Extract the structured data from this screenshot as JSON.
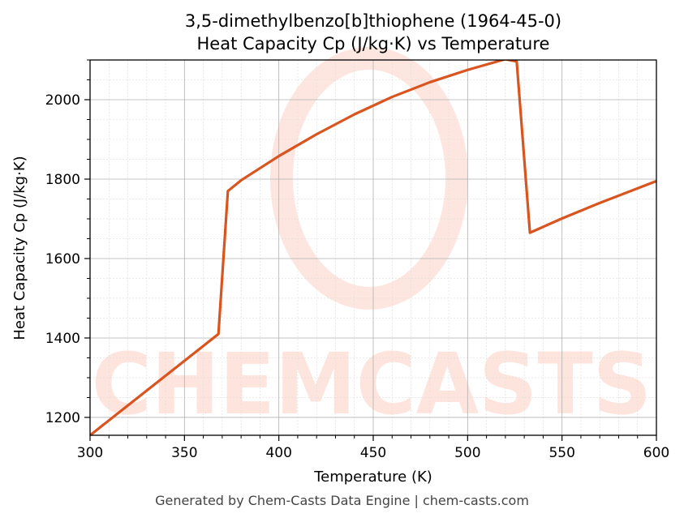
{
  "title_line1": "3,5-dimethylbenzo[b]thiophene (1964-45-0)",
  "title_line2": "Heat Capacity Cp (J/kg·K) vs Temperature",
  "footer": "Generated by Chem-Casts Data Engine | chem-casts.com",
  "watermark": "CHEMCASTS",
  "colors": {
    "line": "#d9541e",
    "watermark": "#fde3dc",
    "grid_major": "#b0b0b0",
    "grid_minor": "#dddddd"
  },
  "chart_data": {
    "type": "line",
    "title": "3,5-dimethylbenzo[b]thiophene (1964-45-0)\nHeat Capacity Cp (J/kg·K) vs Temperature",
    "xlabel": "Temperature (K)",
    "ylabel": "Heat Capacity Cp (J/kg·K)",
    "xlim": [
      300,
      600
    ],
    "ylim": [
      1155,
      2100
    ],
    "xticks": [
      300,
      350,
      400,
      450,
      500,
      550,
      600
    ],
    "yticks": [
      1200,
      1400,
      1600,
      1800,
      2000
    ],
    "grid": true,
    "minor_grid": true,
    "legend": "none",
    "series": [
      {
        "x": [
          300,
          368,
          373,
          380,
          400,
          420,
          440,
          460,
          480,
          500,
          520,
          526,
          533,
          550,
          570,
          600
        ],
        "y": [
          1155,
          1410,
          1770,
          1797,
          1858,
          1913,
          1963,
          2007,
          2044,
          2075,
          2102,
          2096,
          1665,
          1701,
          1740,
          1795
        ]
      }
    ]
  }
}
